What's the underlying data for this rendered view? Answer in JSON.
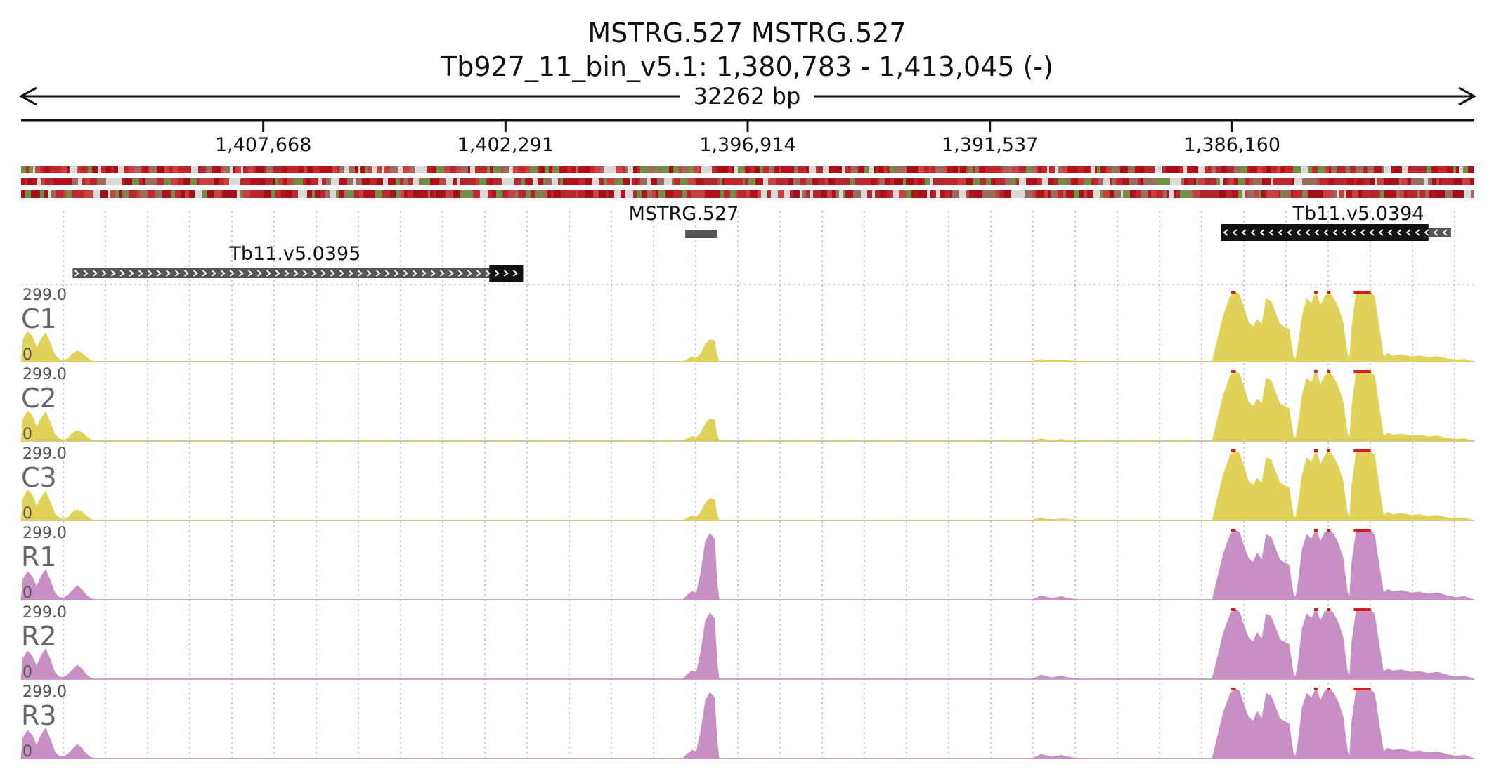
{
  "header": {
    "title": "MSTRG.527  MSTRG.527",
    "locus": "Tb927_11_bin_v5.1: 1,380,783 - 1,413,045 (-)",
    "span_label": "32262 bp"
  },
  "chart_data": {
    "type": "area",
    "title": "MSTRG.527  MSTRG.527",
    "subtitle": "Tb927_11_bin_v5.1: 1,380,783 - 1,413,045 (-)",
    "chromosome": "Tb927_11_bin_v5.1",
    "region": {
      "start": 1380783,
      "end": 1413045,
      "strand": "-"
    },
    "x_reversed": true,
    "axis_ticks": [
      {
        "pos": 1407668,
        "label": "1,407,668"
      },
      {
        "pos": 1402291,
        "label": "1,402,291"
      },
      {
        "pos": 1396914,
        "label": "1,396,914"
      },
      {
        "pos": 1391537,
        "label": "1,391,537"
      },
      {
        "pos": 1386160,
        "label": "1,386,160"
      }
    ],
    "features": [
      {
        "name": "Tb11.v5.0395",
        "start": 1401900,
        "end": 1411900,
        "strand": "+",
        "cds_start": 1401900,
        "cds_end": 1402650
      },
      {
        "name": "MSTRG.527",
        "start": 1397600,
        "end": 1398300,
        "strand": "."
      },
      {
        "name": "Tb11.v5.0394",
        "start": 1381300,
        "end": 1386400,
        "strand": "-",
        "cds_start": 1381800,
        "cds_end": 1386400
      }
    ],
    "tracks": [
      {
        "name": "C1",
        "max_label": "299.0",
        "min_label": "0",
        "color": "#e0d25a",
        "group": "C"
      },
      {
        "name": "C2",
        "max_label": "299.0",
        "min_label": "0",
        "color": "#e0d25a",
        "group": "C"
      },
      {
        "name": "C3",
        "max_label": "299.0",
        "min_label": "0",
        "color": "#e0d25a",
        "group": "C"
      },
      {
        "name": "R1",
        "max_label": "299.0",
        "min_label": "0",
        "color": "#c78fc4",
        "group": "R"
      },
      {
        "name": "R2",
        "max_label": "299.0",
        "min_label": "0",
        "color": "#c78fc4",
        "group": "R"
      },
      {
        "name": "R3",
        "max_label": "299.0",
        "min_label": "0",
        "color": "#c78fc4",
        "group": "R"
      }
    ],
    "ylim": [
      0,
      299
    ],
    "coverage_profiles": {
      "C": [
        [
          1413045,
          0
        ],
        [
          1413000,
          95
        ],
        [
          1412900,
          130
        ],
        [
          1412800,
          110
        ],
        [
          1412700,
          60
        ],
        [
          1412600,
          95
        ],
        [
          1412500,
          125
        ],
        [
          1412400,
          80
        ],
        [
          1412300,
          30
        ],
        [
          1412200,
          10
        ],
        [
          1412100,
          5
        ],
        [
          1412000,
          12
        ],
        [
          1411900,
          35
        ],
        [
          1411800,
          45
        ],
        [
          1411700,
          38
        ],
        [
          1411600,
          20
        ],
        [
          1411500,
          5
        ],
        [
          1411400,
          0
        ],
        [
          1398350,
          0
        ],
        [
          1398250,
          10
        ],
        [
          1398150,
          20
        ],
        [
          1398050,
          15
        ],
        [
          1397950,
          35
        ],
        [
          1397850,
          75
        ],
        [
          1397750,
          95
        ],
        [
          1397650,
          90
        ],
        [
          1397600,
          30
        ],
        [
          1397550,
          0
        ],
        [
          1390600,
          0
        ],
        [
          1390500,
          6
        ],
        [
          1390400,
          9
        ],
        [
          1390300,
          6
        ],
        [
          1390100,
          4
        ],
        [
          1389950,
          7
        ],
        [
          1389850,
          5
        ],
        [
          1389700,
          3
        ],
        [
          1389500,
          0
        ],
        [
          1386600,
          0
        ],
        [
          1386500,
          80
        ],
        [
          1386350,
          200
        ],
        [
          1386200,
          280
        ],
        [
          1386100,
          300
        ],
        [
          1386000,
          290
        ],
        [
          1385900,
          230
        ],
        [
          1385800,
          170
        ],
        [
          1385700,
          150
        ],
        [
          1385600,
          180
        ],
        [
          1385500,
          160
        ],
        [
          1385400,
          270
        ],
        [
          1385300,
          260
        ],
        [
          1385200,
          210
        ],
        [
          1385100,
          160
        ],
        [
          1385000,
          150
        ],
        [
          1384900,
          140
        ],
        [
          1384800,
          20
        ],
        [
          1384750,
          10
        ],
        [
          1384700,
          60
        ],
        [
          1384600,
          200
        ],
        [
          1384500,
          270
        ],
        [
          1384400,
          250
        ],
        [
          1384300,
          300
        ],
        [
          1384200,
          240
        ],
        [
          1384100,
          280
        ],
        [
          1384000,
          300
        ],
        [
          1383900,
          270
        ],
        [
          1383800,
          230
        ],
        [
          1383700,
          170
        ],
        [
          1383600,
          30
        ],
        [
          1383550,
          10
        ],
        [
          1383500,
          150
        ],
        [
          1383400,
          300
        ],
        [
          1383300,
          300
        ],
        [
          1383200,
          300
        ],
        [
          1383100,
          300
        ],
        [
          1383000,
          280
        ],
        [
          1382900,
          150
        ],
        [
          1382800,
          20
        ],
        [
          1382700,
          35
        ],
        [
          1382600,
          25
        ],
        [
          1382400,
          30
        ],
        [
          1382200,
          22
        ],
        [
          1382000,
          25
        ],
        [
          1381800,
          18
        ],
        [
          1381600,
          22
        ],
        [
          1381400,
          12
        ],
        [
          1381200,
          8
        ],
        [
          1381000,
          10
        ],
        [
          1380800,
          0
        ]
      ],
      "R": [
        [
          1413045,
          0
        ],
        [
          1413000,
          90
        ],
        [
          1412900,
          120
        ],
        [
          1412800,
          100
        ],
        [
          1412700,
          55
        ],
        [
          1412600,
          100
        ],
        [
          1412500,
          130
        ],
        [
          1412400,
          85
        ],
        [
          1412300,
          30
        ],
        [
          1412200,
          10
        ],
        [
          1412100,
          8
        ],
        [
          1412000,
          20
        ],
        [
          1411900,
          40
        ],
        [
          1411800,
          60
        ],
        [
          1411700,
          45
        ],
        [
          1411600,
          20
        ],
        [
          1411500,
          5
        ],
        [
          1411400,
          0
        ],
        [
          1398350,
          0
        ],
        [
          1398250,
          20
        ],
        [
          1398150,
          35
        ],
        [
          1398050,
          30
        ],
        [
          1397950,
          120
        ],
        [
          1397850,
          250
        ],
        [
          1397750,
          285
        ],
        [
          1397650,
          260
        ],
        [
          1397600,
          80
        ],
        [
          1397550,
          0
        ],
        [
          1390600,
          0
        ],
        [
          1390500,
          8
        ],
        [
          1390400,
          18
        ],
        [
          1390300,
          12
        ],
        [
          1390150,
          6
        ],
        [
          1389950,
          14
        ],
        [
          1389850,
          8
        ],
        [
          1389700,
          3
        ],
        [
          1389500,
          0
        ],
        [
          1386600,
          0
        ],
        [
          1386500,
          80
        ],
        [
          1386350,
          200
        ],
        [
          1386200,
          280
        ],
        [
          1386100,
          300
        ],
        [
          1386000,
          290
        ],
        [
          1385900,
          230
        ],
        [
          1385800,
          180
        ],
        [
          1385700,
          160
        ],
        [
          1385600,
          200
        ],
        [
          1385500,
          170
        ],
        [
          1385400,
          280
        ],
        [
          1385300,
          270
        ],
        [
          1385200,
          220
        ],
        [
          1385100,
          170
        ],
        [
          1385000,
          160
        ],
        [
          1384900,
          150
        ],
        [
          1384800,
          20
        ],
        [
          1384750,
          10
        ],
        [
          1384700,
          60
        ],
        [
          1384600,
          220
        ],
        [
          1384500,
          280
        ],
        [
          1384400,
          260
        ],
        [
          1384300,
          300
        ],
        [
          1384200,
          250
        ],
        [
          1384100,
          290
        ],
        [
          1384000,
          300
        ],
        [
          1383900,
          280
        ],
        [
          1383800,
          240
        ],
        [
          1383700,
          180
        ],
        [
          1383600,
          30
        ],
        [
          1383550,
          10
        ],
        [
          1383500,
          160
        ],
        [
          1383400,
          300
        ],
        [
          1383300,
          300
        ],
        [
          1383200,
          300
        ],
        [
          1383100,
          300
        ],
        [
          1383000,
          280
        ],
        [
          1382900,
          150
        ],
        [
          1382800,
          30
        ],
        [
          1382700,
          45
        ],
        [
          1382600,
          35
        ],
        [
          1382400,
          40
        ],
        [
          1382200,
          30
        ],
        [
          1382000,
          33
        ],
        [
          1381800,
          25
        ],
        [
          1381600,
          30
        ],
        [
          1381400,
          18
        ],
        [
          1381200,
          10
        ],
        [
          1381000,
          14
        ],
        [
          1380800,
          0
        ]
      ]
    },
    "clipped_ranges": [
      [
        1386180,
        1386080
      ],
      [
        1384340,
        1384260
      ],
      [
        1384060,
        1383980
      ],
      [
        1383460,
        1383080
      ]
    ],
    "grid": true
  }
}
